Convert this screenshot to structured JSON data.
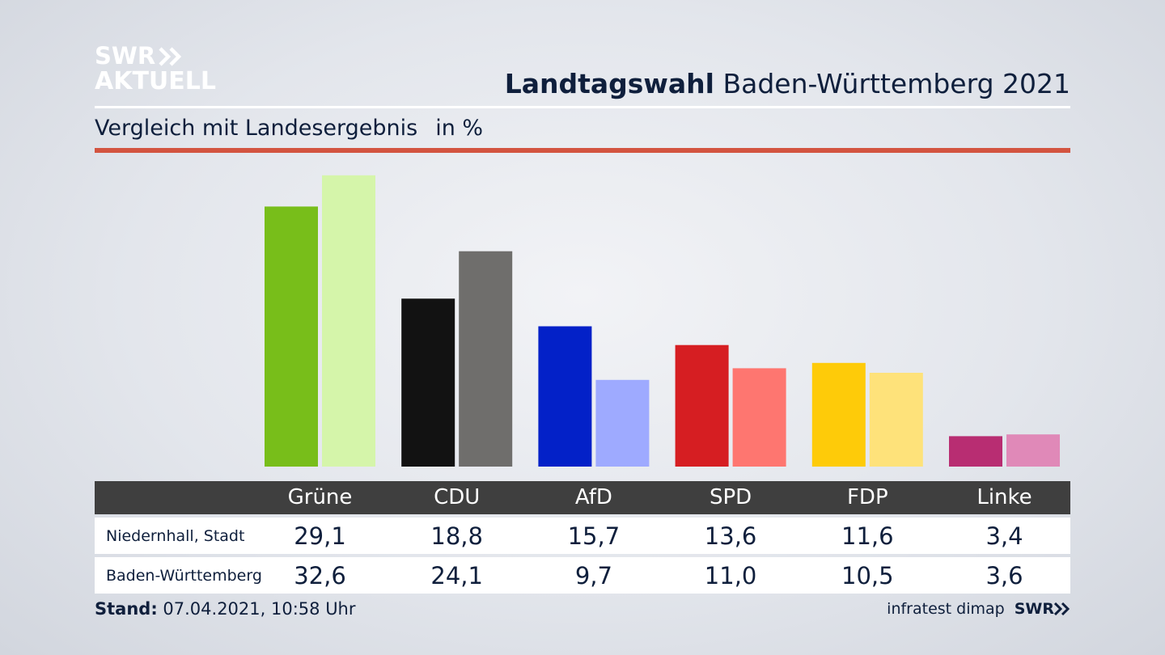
{
  "logo": {
    "line1": "SWR",
    "line2": "AKTUELL"
  },
  "header": {
    "title_bold": "Landtagswahl",
    "title_rest": "Baden-Württemberg 2021",
    "subtitle": "Vergleich mit Landesergebnis",
    "unit": "in %"
  },
  "chart_data": {
    "type": "bar",
    "categories": [
      "Grüne",
      "CDU",
      "AfD",
      "SPD",
      "FDP",
      "Linke"
    ],
    "series": [
      {
        "name": "Niedernhall, Stadt",
        "values": [
          29.1,
          18.8,
          15.7,
          13.6,
          11.6,
          3.4
        ]
      },
      {
        "name": "Baden-Württemberg",
        "values": [
          32.6,
          24.1,
          9.7,
          11.0,
          10.5,
          3.6
        ]
      }
    ],
    "display": {
      "Niedernhall, Stadt": [
        "29,1",
        "18,8",
        "15,7",
        "13,6",
        "11,6",
        "3,4"
      ],
      "Baden-Württemberg": [
        "32,6",
        "24,1",
        "9,7",
        "11,0",
        "10,5",
        "3,6"
      ]
    },
    "colors": {
      "primary": [
        "#78be1a",
        "#121212",
        "#0321c8",
        "#d61e22",
        "#fecb09",
        "#b82d72"
      ],
      "secondary": [
        "#d5f5aa",
        "#6f6e6c",
        "#9eaaff",
        "#fe7670",
        "#fee27a",
        "#e089b8"
      ]
    },
    "ylim": [
      0,
      33
    ],
    "grid": false,
    "legend": "table-below"
  },
  "footer": {
    "stand_label": "Stand:",
    "stand_value": "07.04.2021, 10:58 Uhr",
    "source": "infratest dimap",
    "brand": "SWR"
  }
}
